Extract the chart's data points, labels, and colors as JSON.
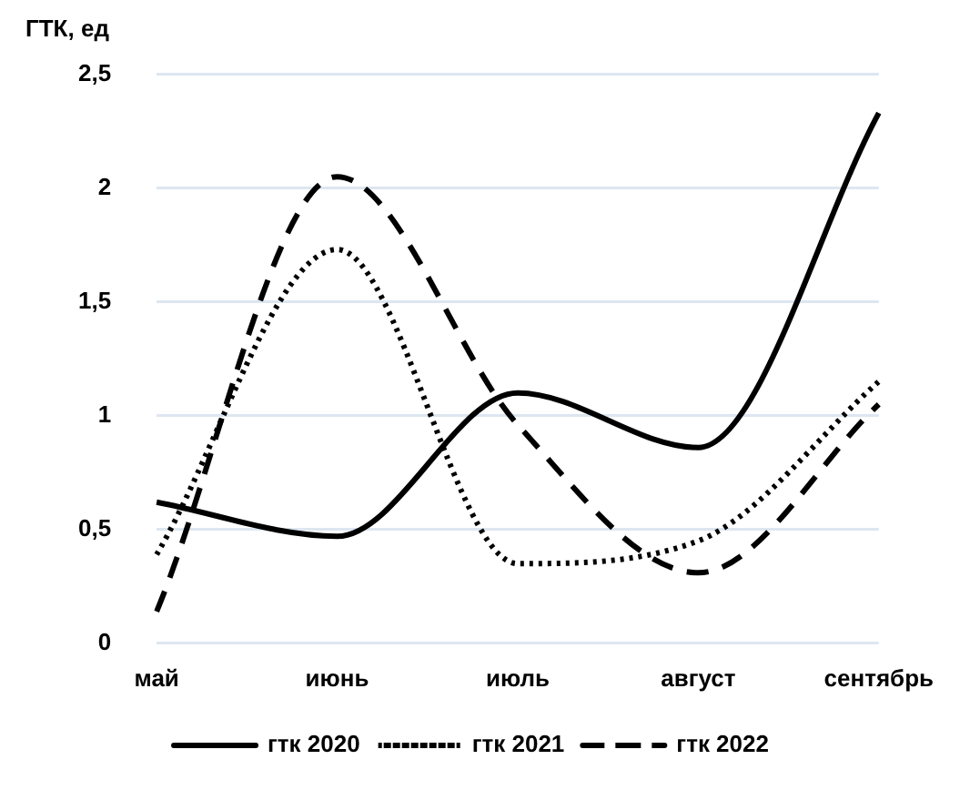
{
  "chart_data": {
    "type": "line",
    "ylabel": "ГТК, ед",
    "categories": [
      "май",
      "июнь",
      "июль",
      "август",
      "сентябрь"
    ],
    "series": [
      {
        "name": "гтк 2020",
        "color": "#000000",
        "line_style": "solid",
        "values": [
          0.62,
          0.47,
          1.1,
          0.86,
          2.33
        ]
      },
      {
        "name": "гтк 2021",
        "color": "#000000",
        "line_style": "dotted",
        "values": [
          0.39,
          1.73,
          0.35,
          0.45,
          1.15
        ]
      },
      {
        "name": "гтк 2022",
        "color": "#000000",
        "line_style": "dashed",
        "values": [
          0.14,
          2.05,
          0.96,
          0.31,
          1.05
        ]
      }
    ],
    "ylim": [
      0,
      2.5
    ],
    "yticks": [
      0,
      {
        "value": 0.5,
        "label": "0,5"
      },
      1,
      {
        "value": 1.5,
        "label": "1,5"
      },
      2,
      {
        "value": 2.5,
        "label": "2,5"
      }
    ],
    "grid": "y",
    "legend": "bottom",
    "marker": "none"
  }
}
